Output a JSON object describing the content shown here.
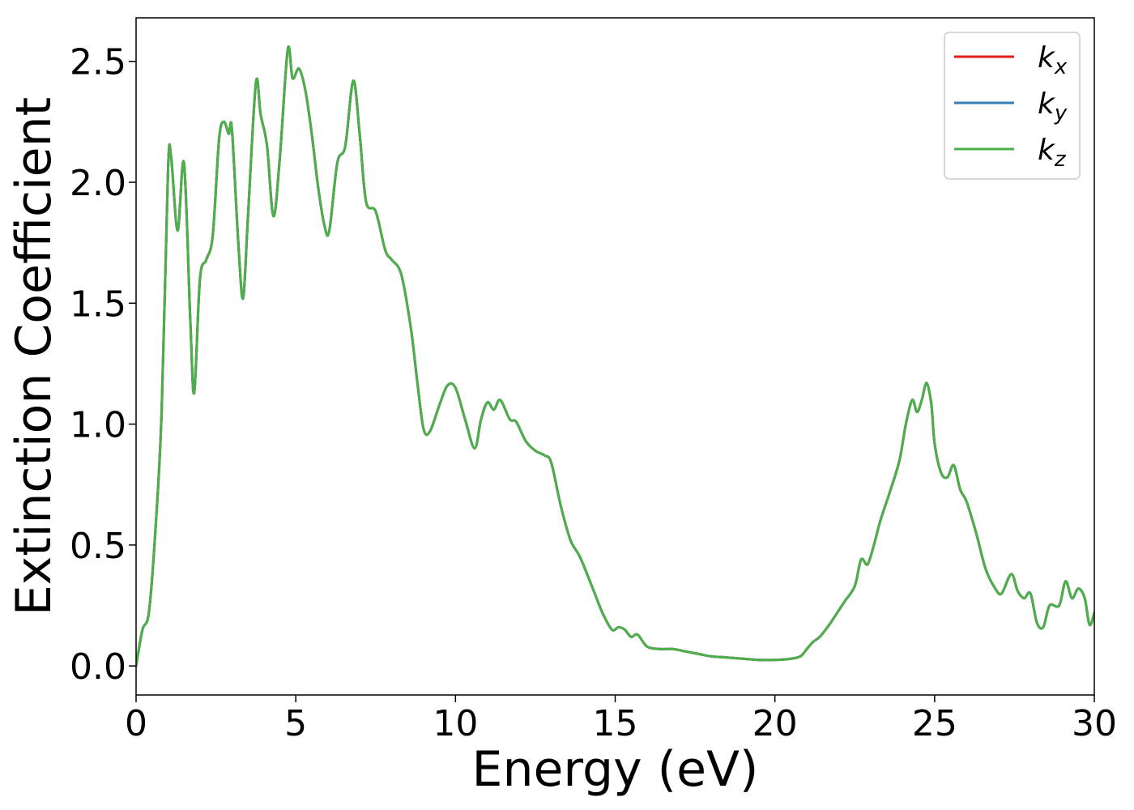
{
  "chart_data": {
    "type": "line",
    "xlabel": "Energy (eV)",
    "ylabel": "Extinction Coefficient",
    "xlim": [
      0,
      30
    ],
    "ylim": [
      -0.12,
      2.68
    ],
    "xticks": [
      0,
      5,
      10,
      15,
      20,
      25,
      30
    ],
    "xtick_labels": [
      "0",
      "5",
      "10",
      "15",
      "20",
      "25",
      "30"
    ],
    "yticks": [
      0.0,
      0.5,
      1.0,
      1.5,
      2.0,
      2.5
    ],
    "ytick_labels": [
      "0.0",
      "0.5",
      "1.0",
      "1.5",
      "2.0",
      "2.5"
    ],
    "grid": false,
    "legend_position": "top-right",
    "series": [
      {
        "name": "k",
        "subscript": "x",
        "color": "#e41a1c",
        "x": [
          0.0,
          0.2,
          0.4,
          0.6,
          0.8,
          1.0,
          1.1,
          1.3,
          1.5,
          1.7,
          1.82,
          2.0,
          2.2,
          2.4,
          2.6,
          2.75,
          2.9,
          3.0,
          3.2,
          3.35,
          3.5,
          3.75,
          3.9,
          4.1,
          4.3,
          4.5,
          4.75,
          4.9,
          5.1,
          5.3,
          5.5,
          5.7,
          5.9,
          6.05,
          6.3,
          6.55,
          6.8,
          7.0,
          7.2,
          7.5,
          7.8,
          8.0,
          8.3,
          8.6,
          8.8,
          9.0,
          9.2,
          9.5,
          9.75,
          10.0,
          10.3,
          10.6,
          10.8,
          11.0,
          11.2,
          11.4,
          11.7,
          11.9,
          12.2,
          12.5,
          12.8,
          13.0,
          13.3,
          13.6,
          13.9,
          14.3,
          14.6,
          14.9,
          15.1,
          15.3,
          15.5,
          15.7,
          16.0,
          16.4,
          16.8,
          17.2,
          17.6,
          18.0,
          18.5,
          19.0,
          19.5,
          20.0,
          20.5,
          20.8,
          21.0,
          21.2,
          21.4,
          21.7,
          22.0,
          22.2,
          22.5,
          22.7,
          22.9,
          23.1,
          23.3,
          23.6,
          23.9,
          24.1,
          24.3,
          24.45,
          24.6,
          24.75,
          24.9,
          25.0,
          25.2,
          25.4,
          25.6,
          25.8,
          26.0,
          26.3,
          26.6,
          26.9,
          27.1,
          27.4,
          27.6,
          27.8,
          28.0,
          28.2,
          28.4,
          28.6,
          28.9,
          29.1,
          29.3,
          29.5,
          29.7,
          29.85,
          30.0
        ],
        "y": [
          0.0,
          0.15,
          0.22,
          0.55,
          1.05,
          2.05,
          2.1,
          1.8,
          2.08,
          1.42,
          1.13,
          1.6,
          1.68,
          1.78,
          2.18,
          2.25,
          2.2,
          2.22,
          1.75,
          1.52,
          1.85,
          2.41,
          2.28,
          2.15,
          1.86,
          2.1,
          2.55,
          2.43,
          2.47,
          2.38,
          2.2,
          1.98,
          1.82,
          1.8,
          2.08,
          2.15,
          2.42,
          2.2,
          1.92,
          1.88,
          1.72,
          1.68,
          1.62,
          1.4,
          1.18,
          0.98,
          0.97,
          1.08,
          1.16,
          1.15,
          1.02,
          0.9,
          1.02,
          1.09,
          1.06,
          1.1,
          1.02,
          1.01,
          0.93,
          0.89,
          0.87,
          0.84,
          0.66,
          0.52,
          0.45,
          0.32,
          0.22,
          0.15,
          0.16,
          0.15,
          0.12,
          0.13,
          0.08,
          0.07,
          0.07,
          0.06,
          0.05,
          0.04,
          0.035,
          0.03,
          0.025,
          0.025,
          0.03,
          0.04,
          0.07,
          0.1,
          0.12,
          0.17,
          0.23,
          0.27,
          0.33,
          0.44,
          0.42,
          0.5,
          0.6,
          0.72,
          0.85,
          1.0,
          1.1,
          1.05,
          1.1,
          1.17,
          1.08,
          0.92,
          0.8,
          0.78,
          0.83,
          0.73,
          0.68,
          0.55,
          0.4,
          0.32,
          0.3,
          0.38,
          0.31,
          0.28,
          0.3,
          0.18,
          0.16,
          0.25,
          0.25,
          0.35,
          0.28,
          0.32,
          0.28,
          0.17,
          0.22
        ]
      },
      {
        "name": "k",
        "subscript": "y",
        "color": "#377eb8",
        "x": [
          0.0,
          0.2,
          0.4,
          0.6,
          0.8,
          1.0,
          1.1,
          1.3,
          1.5,
          1.7,
          1.82,
          2.0,
          2.2,
          2.4,
          2.6,
          2.75,
          2.9,
          3.0,
          3.2,
          3.35,
          3.5,
          3.75,
          3.9,
          4.1,
          4.3,
          4.5,
          4.75,
          4.9,
          5.1,
          5.3,
          5.5,
          5.7,
          5.9,
          6.05,
          6.3,
          6.55,
          6.8,
          7.0,
          7.2,
          7.5,
          7.8,
          8.0,
          8.3,
          8.6,
          8.8,
          9.0,
          9.2,
          9.5,
          9.75,
          10.0,
          10.3,
          10.6,
          10.8,
          11.0,
          11.2,
          11.4,
          11.7,
          11.9,
          12.2,
          12.5,
          12.8,
          13.0,
          13.3,
          13.6,
          13.9,
          14.3,
          14.6,
          14.9,
          15.1,
          15.3,
          15.5,
          15.7,
          16.0,
          16.4,
          16.8,
          17.2,
          17.6,
          18.0,
          18.5,
          19.0,
          19.5,
          20.0,
          20.5,
          20.8,
          21.0,
          21.2,
          21.4,
          21.7,
          22.0,
          22.2,
          22.5,
          22.7,
          22.9,
          23.1,
          23.3,
          23.6,
          23.9,
          24.1,
          24.3,
          24.45,
          24.6,
          24.75,
          24.9,
          25.0,
          25.2,
          25.4,
          25.6,
          25.8,
          26.0,
          26.3,
          26.6,
          26.9,
          27.1,
          27.4,
          27.6,
          27.8,
          28.0,
          28.2,
          28.4,
          28.6,
          28.9,
          29.1,
          29.3,
          29.5,
          29.7,
          29.85,
          30.0
        ],
        "y": [
          0.0,
          0.15,
          0.22,
          0.55,
          1.05,
          2.05,
          2.1,
          1.8,
          2.08,
          1.42,
          1.13,
          1.6,
          1.68,
          1.78,
          2.18,
          2.25,
          2.2,
          2.22,
          1.75,
          1.52,
          1.85,
          2.41,
          2.28,
          2.15,
          1.86,
          2.1,
          2.55,
          2.43,
          2.47,
          2.38,
          2.2,
          1.98,
          1.82,
          1.8,
          2.08,
          2.15,
          2.42,
          2.2,
          1.92,
          1.88,
          1.72,
          1.68,
          1.62,
          1.4,
          1.18,
          0.98,
          0.97,
          1.08,
          1.16,
          1.15,
          1.02,
          0.9,
          1.02,
          1.09,
          1.06,
          1.1,
          1.02,
          1.01,
          0.93,
          0.89,
          0.87,
          0.84,
          0.66,
          0.52,
          0.45,
          0.32,
          0.22,
          0.15,
          0.16,
          0.15,
          0.12,
          0.13,
          0.08,
          0.07,
          0.07,
          0.06,
          0.05,
          0.04,
          0.035,
          0.03,
          0.025,
          0.025,
          0.03,
          0.04,
          0.07,
          0.1,
          0.12,
          0.17,
          0.23,
          0.27,
          0.33,
          0.44,
          0.42,
          0.5,
          0.6,
          0.72,
          0.85,
          1.0,
          1.1,
          1.05,
          1.1,
          1.17,
          1.08,
          0.92,
          0.8,
          0.78,
          0.83,
          0.73,
          0.68,
          0.55,
          0.4,
          0.32,
          0.3,
          0.38,
          0.31,
          0.28,
          0.3,
          0.18,
          0.16,
          0.25,
          0.25,
          0.35,
          0.28,
          0.32,
          0.28,
          0.17,
          0.22
        ]
      },
      {
        "name": "k",
        "subscript": "z",
        "color": "#4daf4a",
        "x": [
          0.0,
          0.2,
          0.4,
          0.6,
          0.8,
          1.0,
          1.1,
          1.3,
          1.5,
          1.7,
          1.82,
          2.0,
          2.2,
          2.4,
          2.6,
          2.75,
          2.9,
          3.0,
          3.2,
          3.35,
          3.5,
          3.75,
          3.9,
          4.1,
          4.3,
          4.5,
          4.75,
          4.9,
          5.1,
          5.3,
          5.5,
          5.7,
          5.9,
          6.05,
          6.3,
          6.55,
          6.8,
          7.0,
          7.2,
          7.5,
          7.8,
          8.0,
          8.3,
          8.6,
          8.8,
          9.0,
          9.2,
          9.5,
          9.75,
          10.0,
          10.3,
          10.6,
          10.8,
          11.0,
          11.2,
          11.4,
          11.7,
          11.9,
          12.2,
          12.5,
          12.8,
          13.0,
          13.3,
          13.6,
          13.9,
          14.3,
          14.6,
          14.9,
          15.1,
          15.3,
          15.5,
          15.7,
          16.0,
          16.4,
          16.8,
          17.2,
          17.6,
          18.0,
          18.5,
          19.0,
          19.5,
          20.0,
          20.5,
          20.8,
          21.0,
          21.2,
          21.4,
          21.7,
          22.0,
          22.2,
          22.5,
          22.7,
          22.9,
          23.1,
          23.3,
          23.6,
          23.9,
          24.1,
          24.3,
          24.45,
          24.6,
          24.75,
          24.9,
          25.0,
          25.2,
          25.4,
          25.6,
          25.8,
          26.0,
          26.3,
          26.6,
          26.9,
          27.1,
          27.4,
          27.6,
          27.8,
          28.0,
          28.2,
          28.4,
          28.6,
          28.9,
          29.1,
          29.3,
          29.5,
          29.7,
          29.85,
          30.0
        ],
        "y": [
          0.0,
          0.15,
          0.22,
          0.55,
          1.05,
          2.05,
          2.1,
          1.8,
          2.08,
          1.42,
          1.13,
          1.6,
          1.68,
          1.78,
          2.18,
          2.25,
          2.2,
          2.22,
          1.75,
          1.52,
          1.85,
          2.41,
          2.28,
          2.15,
          1.86,
          2.1,
          2.55,
          2.43,
          2.47,
          2.38,
          2.2,
          1.98,
          1.82,
          1.8,
          2.08,
          2.15,
          2.42,
          2.2,
          1.92,
          1.88,
          1.72,
          1.68,
          1.62,
          1.4,
          1.18,
          0.98,
          0.97,
          1.08,
          1.16,
          1.15,
          1.02,
          0.9,
          1.02,
          1.09,
          1.06,
          1.1,
          1.02,
          1.01,
          0.93,
          0.89,
          0.87,
          0.84,
          0.66,
          0.52,
          0.45,
          0.32,
          0.22,
          0.15,
          0.16,
          0.15,
          0.12,
          0.13,
          0.08,
          0.07,
          0.07,
          0.06,
          0.05,
          0.04,
          0.035,
          0.03,
          0.025,
          0.025,
          0.03,
          0.04,
          0.07,
          0.1,
          0.12,
          0.17,
          0.23,
          0.27,
          0.33,
          0.44,
          0.42,
          0.5,
          0.6,
          0.72,
          0.85,
          1.0,
          1.1,
          1.05,
          1.1,
          1.17,
          1.08,
          0.92,
          0.8,
          0.78,
          0.83,
          0.73,
          0.68,
          0.55,
          0.4,
          0.32,
          0.3,
          0.38,
          0.31,
          0.28,
          0.3,
          0.18,
          0.16,
          0.25,
          0.25,
          0.35,
          0.28,
          0.32,
          0.28,
          0.17,
          0.22
        ]
      }
    ]
  }
}
